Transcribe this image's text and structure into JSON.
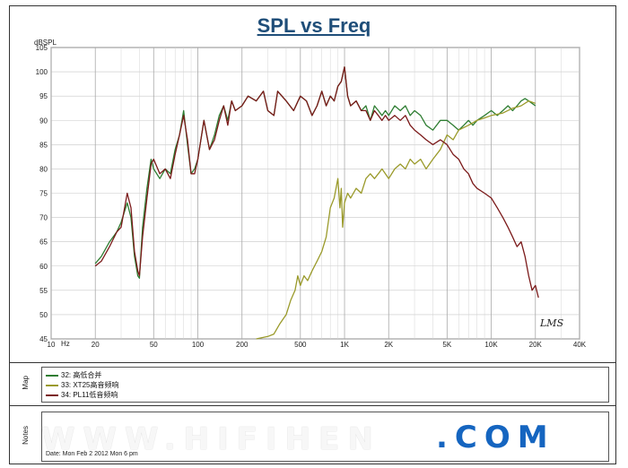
{
  "chart_data": {
    "type": "line",
    "title": "SPL vs Freq",
    "ylabel": "dBSPL",
    "xlabel": "Hz",
    "x_scale": "log",
    "xlim": [
      10,
      40000
    ],
    "ylim": [
      45,
      105
    ],
    "y_ticks": [
      45,
      50,
      55,
      60,
      65,
      70,
      75,
      80,
      85,
      90,
      95,
      100,
      105
    ],
    "x_tick_labels": [
      {
        "value": 10,
        "label": "10"
      },
      {
        "value": 20,
        "label": "20"
      },
      {
        "value": 50,
        "label": "50"
      },
      {
        "value": 100,
        "label": "100"
      },
      {
        "value": 200,
        "label": "200"
      },
      {
        "value": 500,
        "label": "500"
      },
      {
        "value": 1000,
        "label": "1K"
      },
      {
        "value": 2000,
        "label": "2K"
      },
      {
        "value": 5000,
        "label": "5K"
      },
      {
        "value": 10000,
        "label": "10K"
      },
      {
        "value": 20000,
        "label": "20K"
      },
      {
        "value": 40000,
        "label": "40K"
      }
    ],
    "grid": true,
    "series": [
      {
        "name": "32: 高低合并",
        "color": "#2e7d32",
        "points": [
          [
            20,
            60.5
          ],
          [
            22,
            62
          ],
          [
            25,
            65
          ],
          [
            28,
            67
          ],
          [
            30,
            69
          ],
          [
            33,
            73
          ],
          [
            35,
            70
          ],
          [
            37,
            62
          ],
          [
            39,
            58
          ],
          [
            40,
            57.5
          ],
          [
            42,
            68
          ],
          [
            45,
            76
          ],
          [
            48,
            82
          ],
          [
            50,
            80
          ],
          [
            55,
            78
          ],
          [
            60,
            80
          ],
          [
            65,
            79
          ],
          [
            70,
            84
          ],
          [
            75,
            87
          ],
          [
            80,
            92
          ],
          [
            85,
            85
          ],
          [
            90,
            79
          ],
          [
            95,
            80
          ],
          [
            100,
            82
          ],
          [
            110,
            90
          ],
          [
            120,
            84
          ],
          [
            130,
            87
          ],
          [
            140,
            91
          ],
          [
            150,
            93
          ],
          [
            160,
            90
          ],
          [
            170,
            94
          ],
          [
            180,
            92
          ],
          [
            200,
            93
          ],
          [
            220,
            95
          ],
          [
            250,
            94
          ],
          [
            280,
            96
          ],
          [
            300,
            92
          ],
          [
            330,
            91
          ],
          [
            350,
            96
          ],
          [
            400,
            94
          ],
          [
            450,
            92
          ],
          [
            500,
            95
          ],
          [
            550,
            94
          ],
          [
            600,
            91
          ],
          [
            650,
            93
          ],
          [
            700,
            96
          ],
          [
            750,
            93
          ],
          [
            800,
            95
          ],
          [
            850,
            94
          ],
          [
            900,
            97
          ],
          [
            950,
            98
          ],
          [
            1000,
            101
          ],
          [
            1050,
            95
          ],
          [
            1100,
            93
          ],
          [
            1200,
            94
          ],
          [
            1300,
            92
          ],
          [
            1400,
            93
          ],
          [
            1500,
            90
          ],
          [
            1600,
            93
          ],
          [
            1700,
            92
          ],
          [
            1800,
            91
          ],
          [
            1900,
            92
          ],
          [
            2000,
            91
          ],
          [
            2200,
            93
          ],
          [
            2400,
            92
          ],
          [
            2600,
            93
          ],
          [
            2800,
            91
          ],
          [
            3000,
            92
          ],
          [
            3300,
            91
          ],
          [
            3600,
            89
          ],
          [
            4000,
            88
          ],
          [
            4500,
            90
          ],
          [
            5000,
            90
          ],
          [
            5500,
            89
          ],
          [
            6000,
            88
          ],
          [
            6500,
            89
          ],
          [
            7000,
            90
          ],
          [
            7500,
            89
          ],
          [
            8000,
            90
          ],
          [
            9000,
            91
          ],
          [
            10000,
            92
          ],
          [
            11000,
            91
          ],
          [
            12000,
            92
          ],
          [
            13000,
            93
          ],
          [
            14000,
            92
          ],
          [
            15000,
            93
          ],
          [
            16000,
            94
          ],
          [
            17000,
            94.5
          ],
          [
            18000,
            94
          ],
          [
            19000,
            93.5
          ],
          [
            20000,
            93
          ]
        ]
      },
      {
        "name": "33: XT25高音频响",
        "color": "#9a9a2a",
        "points": [
          [
            250,
            45
          ],
          [
            300,
            45.5
          ],
          [
            330,
            46
          ],
          [
            360,
            48
          ],
          [
            400,
            50
          ],
          [
            430,
            53
          ],
          [
            460,
            55
          ],
          [
            480,
            58
          ],
          [
            500,
            56
          ],
          [
            530,
            58
          ],
          [
            560,
            57
          ],
          [
            600,
            59
          ],
          [
            650,
            61
          ],
          [
            700,
            63
          ],
          [
            750,
            66
          ],
          [
            800,
            72
          ],
          [
            850,
            74
          ],
          [
            900,
            78
          ],
          [
            930,
            72
          ],
          [
            950,
            76
          ],
          [
            970,
            68
          ],
          [
            1000,
            73
          ],
          [
            1050,
            75
          ],
          [
            1100,
            74
          ],
          [
            1200,
            76
          ],
          [
            1300,
            75
          ],
          [
            1400,
            78
          ],
          [
            1500,
            79
          ],
          [
            1600,
            78
          ],
          [
            1700,
            79
          ],
          [
            1800,
            80
          ],
          [
            2000,
            78
          ],
          [
            2200,
            80
          ],
          [
            2400,
            81
          ],
          [
            2600,
            80
          ],
          [
            2800,
            82
          ],
          [
            3000,
            81
          ],
          [
            3300,
            82
          ],
          [
            3600,
            80
          ],
          [
            4000,
            82
          ],
          [
            4500,
            84
          ],
          [
            5000,
            87
          ],
          [
            5500,
            86
          ],
          [
            6000,
            88
          ],
          [
            7000,
            89
          ],
          [
            8000,
            90
          ],
          [
            9000,
            90.5
          ],
          [
            10000,
            91
          ],
          [
            12000,
            91.5
          ],
          [
            14000,
            92.5
          ],
          [
            16000,
            93
          ],
          [
            18000,
            94
          ],
          [
            20000,
            93.5
          ]
        ]
      },
      {
        "name": "34: PL11低音频响",
        "color": "#7b1a1a",
        "points": [
          [
            20,
            60
          ],
          [
            22,
            61
          ],
          [
            25,
            64
          ],
          [
            28,
            67
          ],
          [
            30,
            68
          ],
          [
            33,
            75
          ],
          [
            35,
            72
          ],
          [
            37,
            63
          ],
          [
            39,
            59
          ],
          [
            40,
            58
          ],
          [
            42,
            66
          ],
          [
            45,
            74
          ],
          [
            48,
            81
          ],
          [
            50,
            82
          ],
          [
            55,
            79
          ],
          [
            60,
            80
          ],
          [
            65,
            78
          ],
          [
            70,
            83
          ],
          [
            75,
            87
          ],
          [
            80,
            91
          ],
          [
            85,
            86
          ],
          [
            90,
            79
          ],
          [
            95,
            79
          ],
          [
            100,
            82
          ],
          [
            110,
            90
          ],
          [
            120,
            84
          ],
          [
            130,
            86
          ],
          [
            140,
            90
          ],
          [
            150,
            93
          ],
          [
            160,
            89
          ],
          [
            170,
            94
          ],
          [
            180,
            92
          ],
          [
            200,
            93
          ],
          [
            220,
            95
          ],
          [
            250,
            94
          ],
          [
            280,
            96
          ],
          [
            300,
            92
          ],
          [
            330,
            91
          ],
          [
            350,
            96
          ],
          [
            400,
            94
          ],
          [
            450,
            92
          ],
          [
            500,
            95
          ],
          [
            550,
            94
          ],
          [
            600,
            91
          ],
          [
            650,
            93
          ],
          [
            700,
            96
          ],
          [
            750,
            93
          ],
          [
            800,
            95
          ],
          [
            850,
            94
          ],
          [
            900,
            97
          ],
          [
            950,
            98
          ],
          [
            1000,
            101
          ],
          [
            1050,
            95
          ],
          [
            1100,
            93
          ],
          [
            1200,
            94
          ],
          [
            1300,
            92
          ],
          [
            1400,
            92
          ],
          [
            1500,
            90
          ],
          [
            1600,
            92
          ],
          [
            1700,
            91
          ],
          [
            1800,
            90
          ],
          [
            1900,
            91
          ],
          [
            2000,
            90
          ],
          [
            2200,
            91
          ],
          [
            2400,
            90
          ],
          [
            2600,
            91
          ],
          [
            2800,
            89
          ],
          [
            3000,
            88
          ],
          [
            3300,
            87
          ],
          [
            3600,
            86
          ],
          [
            4000,
            85
          ],
          [
            4500,
            86
          ],
          [
            5000,
            85
          ],
          [
            5500,
            83
          ],
          [
            6000,
            82
          ],
          [
            6500,
            80
          ],
          [
            7000,
            79
          ],
          [
            7500,
            77
          ],
          [
            8000,
            76
          ],
          [
            9000,
            75
          ],
          [
            10000,
            74
          ],
          [
            11000,
            72
          ],
          [
            12000,
            70
          ],
          [
            13000,
            68
          ],
          [
            14000,
            66
          ],
          [
            15000,
            64
          ],
          [
            16000,
            65
          ],
          [
            17000,
            62
          ],
          [
            18000,
            58
          ],
          [
            19000,
            55
          ],
          [
            20000,
            56
          ],
          [
            21000,
            53.5
          ]
        ]
      }
    ]
  },
  "panels": {
    "map_label": "Map",
    "notes_label": "Notes",
    "notes_text": "Date: Mon Feb 2  2012  Mon  6 pm"
  },
  "watermark": {
    "text": "WWW.HIFIHEN",
    "logo": ".COM"
  },
  "logo_text": "LMS"
}
